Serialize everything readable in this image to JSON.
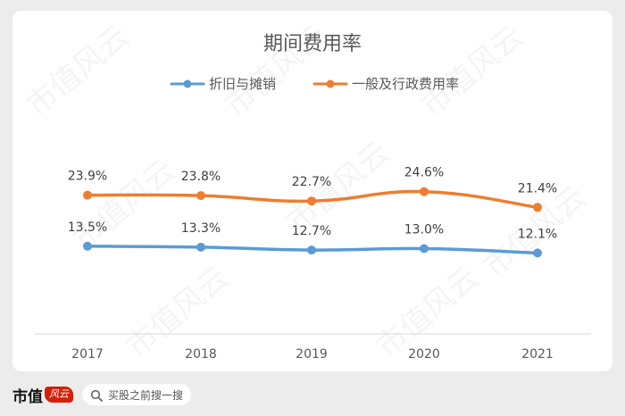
{
  "chart_data": {
    "type": "line",
    "title": "期间费用率",
    "categories": [
      "2017",
      "2018",
      "2019",
      "2020",
      "2021"
    ],
    "series": [
      {
        "name": "折旧与摊销",
        "values": [
          13.5,
          13.3,
          12.7,
          13.0,
          12.1
        ],
        "labels": [
          "13.5%",
          "13.3%",
          "12.7%",
          "13.0%",
          "12.1%"
        ],
        "color": "#5b9bd5"
      },
      {
        "name": "一般及行政费用率",
        "values": [
          23.9,
          23.8,
          22.7,
          24.6,
          21.4
        ],
        "labels": [
          "23.9%",
          "23.8%",
          "22.7%",
          "24.6%",
          "21.4%"
        ],
        "color": "#ed7d31"
      }
    ],
    "smooth": true,
    "grid": false,
    "legend_position": "top"
  },
  "footer": {
    "logo_text": "市值",
    "logo_badge": "风云",
    "search_placeholder": "买股之前搜一搜"
  },
  "watermark": "市值风云"
}
